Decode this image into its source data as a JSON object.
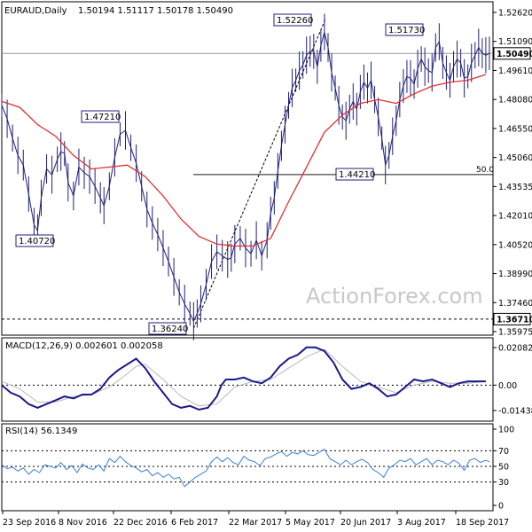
{
  "chart_data": {
    "type": "line",
    "title": "EURAUD,Daily",
    "ohlc_header": "1.50194 1.51117 1.50178 1.50490",
    "watermark": "ActionForex.com",
    "colors": {
      "price": "#1f1f7a",
      "ma": "#e03030",
      "macd": "#1a1a8a",
      "signal": "#b9b9b9",
      "rsi": "#3a7fd8",
      "label_border": "#1f1f7a"
    },
    "x_tick_labels": [
      "23 Sep 2016",
      "8 Nov 2016",
      "22 Dec 2016",
      "6 Feb 2017",
      "22 Mar 2017",
      "5 May 2017",
      "20 Jun 2017",
      "3 Aug 2017",
      "18 Sep 2017"
    ],
    "main": {
      "ylim": [
        1.3597,
        1.5262
      ],
      "y_tick_labels": [
        "1.52620",
        "1.51090",
        "1.49610",
        "1.48080",
        "1.46550",
        "1.45060",
        "1.43535",
        "1.42010",
        "1.40520",
        "1.38990",
        "1.37460",
        "1.35975"
      ],
      "last_price_label": "1.50490",
      "last_price": 1.5049,
      "level_label": "1.36710",
      "level": 1.3671,
      "fib_label": "50.0",
      "fib_level": 1.4421,
      "trendline": {
        "from": {
          "date": "Feb 2017",
          "value": 1.3624
        },
        "to": {
          "date": "May 2017",
          "value": 1.5226
        }
      },
      "annotations": [
        {
          "label": "1.52260",
          "value": 1.5226
        },
        {
          "label": "1.51730",
          "value": 1.5173
        },
        {
          "label": "1.47210",
          "value": 1.4721
        },
        {
          "label": "1.44210",
          "value": 1.4421
        },
        {
          "label": "1.40720",
          "value": 1.4072
        },
        {
          "label": "1.36240",
          "value": 1.3624
        }
      ],
      "price_path": [
        [
          0,
          1.478
        ],
        [
          6,
          1.471
        ],
        [
          12,
          1.461
        ],
        [
          18,
          1.452
        ],
        [
          24,
          1.447
        ],
        [
          30,
          1.432
        ],
        [
          36,
          1.416
        ],
        [
          40,
          1.413
        ],
        [
          44,
          1.43
        ],
        [
          50,
          1.445
        ],
        [
          56,
          1.442
        ],
        [
          62,
          1.45
        ],
        [
          66,
          1.454
        ],
        [
          70,
          1.453
        ],
        [
          74,
          1.438
        ],
        [
          80,
          1.431
        ],
        [
          86,
          1.446
        ],
        [
          92,
          1.443
        ],
        [
          98,
          1.441
        ],
        [
          104,
          1.436
        ],
        [
          110,
          1.43
        ],
        [
          114,
          1.426
        ],
        [
          120,
          1.436
        ],
        [
          126,
          1.451
        ],
        [
          132,
          1.463
        ],
        [
          138,
          1.465
        ],
        [
          144,
          1.456
        ],
        [
          150,
          1.448
        ],
        [
          156,
          1.436
        ],
        [
          162,
          1.424
        ],
        [
          168,
          1.417
        ],
        [
          174,
          1.411
        ],
        [
          180,
          1.404
        ],
        [
          186,
          1.397
        ],
        [
          192,
          1.389
        ],
        [
          198,
          1.381
        ],
        [
          204,
          1.375
        ],
        [
          210,
          1.37
        ],
        [
          214,
          1.366
        ],
        [
          218,
          1.37
        ],
        [
          222,
          1.375
        ],
        [
          228,
          1.385
        ],
        [
          234,
          1.397
        ],
        [
          240,
          1.402
        ],
        [
          246,
          1.4
        ],
        [
          252,
          1.398
        ],
        [
          256,
          1.399
        ],
        [
          260,
          1.406
        ],
        [
          266,
          1.409
        ],
        [
          272,
          1.404
        ],
        [
          278,
          1.401
        ],
        [
          284,
          1.408
        ],
        [
          290,
          1.4
        ],
        [
          296,
          1.408
        ],
        [
          300,
          1.422
        ],
        [
          304,
          1.43
        ],
        [
          308,
          1.444
        ],
        [
          312,
          1.457
        ],
        [
          316,
          1.468
        ],
        [
          320,
          1.478
        ],
        [
          324,
          1.487
        ],
        [
          328,
          1.491
        ],
        [
          332,
          1.496
        ],
        [
          336,
          1.499
        ],
        [
          340,
          1.504
        ],
        [
          344,
          1.506
        ],
        [
          348,
          1.506
        ],
        [
          352,
          1.498
        ],
        [
          356,
          1.509
        ],
        [
          360,
          1.516
        ],
        [
          364,
          1.508
        ],
        [
          368,
          1.495
        ],
        [
          372,
          1.487
        ],
        [
          376,
          1.478
        ],
        [
          380,
          1.472
        ],
        [
          384,
          1.47
        ],
        [
          388,
          1.476
        ],
        [
          392,
          1.48
        ],
        [
          396,
          1.476
        ],
        [
          400,
          1.485
        ],
        [
          404,
          1.49
        ],
        [
          408,
          1.487
        ],
        [
          412,
          1.491
        ],
        [
          416,
          1.481
        ],
        [
          420,
          1.472
        ],
        [
          424,
          1.461
        ],
        [
          428,
          1.447
        ],
        [
          432,
          1.452
        ],
        [
          436,
          1.462
        ],
        [
          440,
          1.47
        ],
        [
          444,
          1.481
        ],
        [
          448,
          1.488
        ],
        [
          452,
          1.493
        ],
        [
          456,
          1.492
        ],
        [
          460,
          1.489
        ],
        [
          464,
          1.497
        ],
        [
          468,
          1.502
        ],
        [
          472,
          1.498
        ],
        [
          476,
          1.496
        ],
        [
          480,
          1.495
        ],
        [
          484,
          1.508
        ],
        [
          488,
          1.511
        ],
        [
          492,
          1.5
        ],
        [
          496,
          1.495
        ],
        [
          500,
          1.491
        ],
        [
          504,
          1.498
        ],
        [
          508,
          1.502
        ],
        [
          512,
          1.5
        ],
        [
          516,
          1.492
        ],
        [
          520,
          1.493
        ],
        [
          524,
          1.5
        ],
        [
          528,
          1.504
        ],
        [
          532,
          1.508
        ],
        [
          536,
          1.505
        ],
        [
          540,
          1.504
        ],
        [
          544,
          1.505
        ]
      ],
      "ma_path": [
        [
          0,
          1.48
        ],
        [
          20,
          1.477
        ],
        [
          40,
          1.468
        ],
        [
          60,
          1.462
        ],
        [
          80,
          1.452
        ],
        [
          100,
          1.445
        ],
        [
          120,
          1.446
        ],
        [
          140,
          1.447
        ],
        [
          160,
          1.441
        ],
        [
          180,
          1.431
        ],
        [
          200,
          1.419
        ],
        [
          220,
          1.41
        ],
        [
          240,
          1.406
        ],
        [
          260,
          1.405
        ],
        [
          280,
          1.405
        ],
        [
          300,
          1.409
        ],
        [
          320,
          1.428
        ],
        [
          340,
          1.446
        ],
        [
          360,
          1.464
        ],
        [
          380,
          1.473
        ],
        [
          400,
          1.479
        ],
        [
          420,
          1.481
        ],
        [
          440,
          1.479
        ],
        [
          460,
          1.484
        ],
        [
          480,
          1.488
        ],
        [
          500,
          1.49
        ],
        [
          520,
          1.491
        ],
        [
          540,
          1.494
        ]
      ]
    },
    "macd": {
      "label": "MACD(12,26,9) 0.002601 0.002058",
      "ylim": [
        -0.014386,
        0.020827
      ],
      "y_tick_labels": [
        "0.020827",
        "0.00",
        "-0.014386"
      ],
      "macd_path": [
        [
          0,
          0.0
        ],
        [
          10,
          -0.004
        ],
        [
          20,
          -0.006
        ],
        [
          30,
          -0.01
        ],
        [
          40,
          -0.012
        ],
        [
          50,
          -0.01
        ],
        [
          60,
          -0.008
        ],
        [
          70,
          -0.006
        ],
        [
          80,
          -0.007
        ],
        [
          90,
          -0.005
        ],
        [
          100,
          -0.005
        ],
        [
          110,
          -0.002
        ],
        [
          120,
          0.004
        ],
        [
          130,
          0.008
        ],
        [
          140,
          0.011
        ],
        [
          150,
          0.014
        ],
        [
          160,
          0.009
        ],
        [
          170,
          0.002
        ],
        [
          180,
          -0.004
        ],
        [
          190,
          -0.01
        ],
        [
          200,
          -0.012
        ],
        [
          210,
          -0.011
        ],
        [
          220,
          -0.013
        ],
        [
          230,
          -0.012
        ],
        [
          240,
          -0.006
        ],
        [
          245,
          0.0
        ],
        [
          250,
          0.003
        ],
        [
          260,
          0.003
        ],
        [
          270,
          0.004
        ],
        [
          280,
          0.002
        ],
        [
          290,
          0.001
        ],
        [
          300,
          0.004
        ],
        [
          310,
          0.01
        ],
        [
          320,
          0.014
        ],
        [
          330,
          0.016
        ],
        [
          340,
          0.02
        ],
        [
          350,
          0.02
        ],
        [
          360,
          0.018
        ],
        [
          370,
          0.012
        ],
        [
          380,
          0.003
        ],
        [
          390,
          -0.002
        ],
        [
          400,
          -0.001
        ],
        [
          410,
          0.001
        ],
        [
          420,
          -0.002
        ],
        [
          430,
          -0.006
        ],
        [
          440,
          -0.005
        ],
        [
          450,
          -0.001
        ],
        [
          460,
          0.003
        ],
        [
          470,
          0.002
        ],
        [
          480,
          0.003
        ],
        [
          490,
          0.001
        ],
        [
          500,
          -0.001
        ],
        [
          510,
          0.001
        ],
        [
          520,
          0.002
        ],
        [
          530,
          0.002
        ],
        [
          540,
          0.002
        ]
      ],
      "signal_path": [
        [
          0,
          0.002
        ],
        [
          20,
          -0.002
        ],
        [
          40,
          -0.009
        ],
        [
          60,
          -0.009
        ],
        [
          80,
          -0.006
        ],
        [
          100,
          -0.005
        ],
        [
          120,
          -0.001
        ],
        [
          140,
          0.006
        ],
        [
          150,
          0.01
        ],
        [
          160,
          0.011
        ],
        [
          180,
          0.003
        ],
        [
          200,
          -0.006
        ],
        [
          220,
          -0.011
        ],
        [
          240,
          -0.01
        ],
        [
          260,
          -0.001
        ],
        [
          280,
          0.002
        ],
        [
          300,
          0.003
        ],
        [
          320,
          0.009
        ],
        [
          340,
          0.015
        ],
        [
          360,
          0.019
        ],
        [
          380,
          0.01
        ],
        [
          400,
          0.002
        ],
        [
          420,
          -0.001
        ],
        [
          440,
          -0.004
        ],
        [
          460,
          0.0
        ],
        [
          480,
          0.002
        ],
        [
          500,
          0.001
        ],
        [
          520,
          0.001
        ],
        [
          540,
          0.002
        ]
      ]
    },
    "rsi": {
      "label": "RSI(14) 56.1349",
      "ylim": [
        0,
        100
      ],
      "y_tick_labels": [
        "100",
        "70",
        "50",
        "30",
        "0"
      ],
      "levels": [
        70,
        50,
        30
      ],
      "path": [
        [
          0,
          52
        ],
        [
          6,
          47
        ],
        [
          12,
          49
        ],
        [
          18,
          44
        ],
        [
          24,
          48
        ],
        [
          30,
          40
        ],
        [
          36,
          46
        ],
        [
          42,
          42
        ],
        [
          48,
          52
        ],
        [
          54,
          50
        ],
        [
          60,
          48
        ],
        [
          66,
          55
        ],
        [
          72,
          46
        ],
        [
          78,
          51
        ],
        [
          84,
          42
        ],
        [
          90,
          53
        ],
        [
          96,
          48
        ],
        [
          102,
          46
        ],
        [
          108,
          52
        ],
        [
          114,
          44
        ],
        [
          120,
          60
        ],
        [
          126,
          55
        ],
        [
          132,
          63
        ],
        [
          138,
          56
        ],
        [
          144,
          51
        ],
        [
          150,
          48
        ],
        [
          156,
          43
        ],
        [
          162,
          46
        ],
        [
          168,
          38
        ],
        [
          174,
          42
        ],
        [
          180,
          36
        ],
        [
          186,
          40
        ],
        [
          192,
          34
        ],
        [
          198,
          36
        ],
        [
          204,
          24
        ],
        [
          210,
          30
        ],
        [
          216,
          36
        ],
        [
          222,
          40
        ],
        [
          228,
          44
        ],
        [
          234,
          56
        ],
        [
          240,
          62
        ],
        [
          246,
          56
        ],
        [
          252,
          61
        ],
        [
          258,
          55
        ],
        [
          264,
          52
        ],
        [
          270,
          63
        ],
        [
          276,
          58
        ],
        [
          282,
          56
        ],
        [
          288,
          51
        ],
        [
          294,
          60
        ],
        [
          300,
          62
        ],
        [
          306,
          66
        ],
        [
          312,
          69
        ],
        [
          318,
          63
        ],
        [
          324,
          68
        ],
        [
          330,
          66
        ],
        [
          336,
          70
        ],
        [
          342,
          65
        ],
        [
          348,
          64
        ],
        [
          354,
          68
        ],
        [
          360,
          72
        ],
        [
          366,
          60
        ],
        [
          372,
          56
        ],
        [
          378,
          52
        ],
        [
          384,
          58
        ],
        [
          390,
          52
        ],
        [
          396,
          56
        ],
        [
          402,
          59
        ],
        [
          408,
          55
        ],
        [
          414,
          46
        ],
        [
          420,
          42
        ],
        [
          426,
          36
        ],
        [
          432,
          48
        ],
        [
          438,
          52
        ],
        [
          444,
          58
        ],
        [
          450,
          56
        ],
        [
          456,
          60
        ],
        [
          462,
          52
        ],
        [
          468,
          56
        ],
        [
          474,
          60
        ],
        [
          480,
          52
        ],
        [
          486,
          58
        ],
        [
          492,
          56
        ],
        [
          498,
          52
        ],
        [
          504,
          58
        ],
        [
          510,
          54
        ],
        [
          516,
          45
        ],
        [
          522,
          58
        ],
        [
          528,
          60
        ],
        [
          534,
          55
        ],
        [
          540,
          58
        ],
        [
          544,
          56
        ]
      ]
    }
  }
}
